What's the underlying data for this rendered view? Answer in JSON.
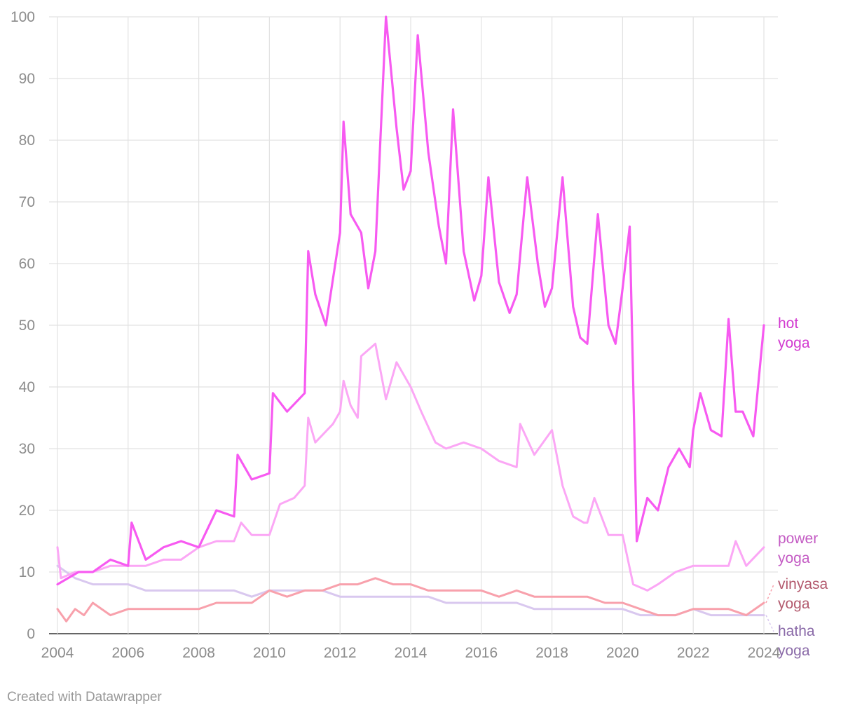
{
  "footer": {
    "credit": "Created with Datawrapper"
  },
  "chart_data": {
    "type": "line",
    "xlim": [
      2004,
      2024
    ],
    "ylim": [
      0,
      100
    ],
    "x_ticks": [
      "2004",
      "2006",
      "2008",
      "2010",
      "2012",
      "2014",
      "2016",
      "2018",
      "2020",
      "2022",
      "2024"
    ],
    "y_ticks": [
      "0",
      "10",
      "20",
      "30",
      "40",
      "50",
      "60",
      "70",
      "80",
      "90",
      "100"
    ],
    "grid": true,
    "legend": "direct labels at right end of lines",
    "series": [
      {
        "name": "hatha yoga",
        "label_lines": [
          "hatha",
          "yoga"
        ],
        "color": "#d9c8ef",
        "label_color": "#8a6aa8",
        "x": [
          2004,
          2004.5,
          2005,
          2005.5,
          2006,
          2006.5,
          2007,
          2007.5,
          2008,
          2008.5,
          2009,
          2009.5,
          2010,
          2010.5,
          2011,
          2011.5,
          2012,
          2012.5,
          2013,
          2013.5,
          2014,
          2014.5,
          2015,
          2015.5,
          2016,
          2016.5,
          2017,
          2017.5,
          2018,
          2018.5,
          2019,
          2019.5,
          2020,
          2020.5,
          2021,
          2021.5,
          2022,
          2022.5,
          2023,
          2023.5,
          2024
        ],
        "values": [
          11,
          9,
          8,
          8,
          8,
          7,
          7,
          7,
          7,
          7,
          7,
          6,
          7,
          7,
          7,
          7,
          6,
          6,
          6,
          6,
          6,
          6,
          5,
          5,
          5,
          5,
          5,
          4,
          4,
          4,
          4,
          4,
          4,
          3,
          3,
          3,
          4,
          3,
          3,
          3,
          3
        ]
      },
      {
        "name": "vinyasa yoga",
        "label_lines": [
          "vinyasa",
          "yoga"
        ],
        "color": "#f8a1ac",
        "label_color": "#b35a6e",
        "x": [
          2004,
          2004.25,
          2004.5,
          2004.75,
          2005,
          2005.5,
          2006,
          2006.5,
          2007,
          2007.5,
          2008,
          2008.5,
          2009,
          2009.5,
          2010,
          2010.5,
          2011,
          2011.5,
          2012,
          2012.5,
          2013,
          2013.5,
          2014,
          2014.5,
          2015,
          2015.5,
          2016,
          2016.5,
          2017,
          2017.5,
          2018,
          2018.5,
          2019,
          2019.5,
          2020,
          2020.5,
          2021,
          2021.5,
          2022,
          2022.5,
          2023,
          2023.5,
          2024
        ],
        "values": [
          4,
          2,
          4,
          3,
          5,
          3,
          4,
          4,
          4,
          4,
          4,
          5,
          5,
          5,
          7,
          6,
          7,
          7,
          8,
          8,
          9,
          8,
          8,
          7,
          7,
          7,
          7,
          6,
          7,
          6,
          6,
          6,
          6,
          5,
          5,
          4,
          3,
          3,
          4,
          4,
          4,
          3,
          5
        ]
      },
      {
        "name": "power yoga",
        "label_lines": [
          "power",
          "yoga"
        ],
        "color": "#fba7f5",
        "label_color": "#c45cc4",
        "x": [
          2004,
          2004.1,
          2004.5,
          2005,
          2005.5,
          2006,
          2006.5,
          2007,
          2007.5,
          2008,
          2008.5,
          2009,
          2009.2,
          2009.5,
          2010,
          2010.3,
          2010.7,
          2011,
          2011.1,
          2011.3,
          2011.8,
          2012,
          2012.1,
          2012.3,
          2012.5,
          2012.6,
          2013,
          2013.3,
          2013.6,
          2014,
          2014.3,
          2014.7,
          2015,
          2015.5,
          2016,
          2016.5,
          2017,
          2017.1,
          2017.5,
          2018,
          2018.3,
          2018.6,
          2018.9,
          2019,
          2019.2,
          2019.6,
          2020,
          2020.3,
          2020.7,
          2021,
          2021.5,
          2022,
          2022.5,
          2023,
          2023.2,
          2023.5,
          2024
        ],
        "values": [
          14,
          9,
          10,
          10,
          11,
          11,
          11,
          12,
          12,
          14,
          15,
          15,
          18,
          16,
          16,
          21,
          22,
          24,
          35,
          31,
          34,
          36,
          41,
          37,
          35,
          45,
          47,
          38,
          44,
          40,
          36,
          31,
          30,
          31,
          30,
          28,
          27,
          34,
          29,
          33,
          24,
          19,
          18,
          18,
          22,
          16,
          16,
          8,
          7,
          8,
          10,
          11,
          11,
          11,
          15,
          11,
          14
        ]
      },
      {
        "name": "hot yoga",
        "label_lines": [
          "hot",
          "yoga"
        ],
        "color": "#f75af1",
        "label_color": "#d23ad0",
        "x": [
          2004,
          2004.3,
          2004.6,
          2005,
          2005.5,
          2006,
          2006.1,
          2006.5,
          2007,
          2007.5,
          2008,
          2008.5,
          2009,
          2009.1,
          2009.5,
          2010,
          2010.1,
          2010.5,
          2011,
          2011.1,
          2011.3,
          2011.6,
          2012,
          2012.1,
          2012.3,
          2012.6,
          2012.8,
          2013,
          2013.3,
          2013.6,
          2013.8,
          2014,
          2014.2,
          2014.5,
          2014.8,
          2015,
          2015.2,
          2015.5,
          2015.8,
          2016,
          2016.2,
          2016.5,
          2016.8,
          2017,
          2017.3,
          2017.6,
          2017.8,
          2018,
          2018.3,
          2018.6,
          2018.8,
          2019,
          2019.3,
          2019.6,
          2019.8,
          2020,
          2020.2,
          2020.4,
          2020.7,
          2021,
          2021.3,
          2021.6,
          2021.9,
          2022,
          2022.2,
          2022.5,
          2022.8,
          2023,
          2023.2,
          2023.4,
          2023.7,
          2024
        ],
        "values": [
          8,
          9,
          10,
          10,
          12,
          11,
          18,
          12,
          14,
          15,
          14,
          20,
          19,
          29,
          25,
          26,
          39,
          36,
          39,
          62,
          55,
          50,
          65,
          83,
          68,
          65,
          56,
          62,
          100,
          82,
          72,
          75,
          97,
          78,
          66,
          60,
          85,
          62,
          54,
          58,
          74,
          57,
          52,
          55,
          74,
          60,
          53,
          56,
          74,
          53,
          48,
          47,
          68,
          50,
          47,
          56,
          66,
          15,
          22,
          20,
          27,
          30,
          27,
          33,
          39,
          33,
          32,
          51,
          36,
          36,
          32,
          50
        ]
      }
    ]
  }
}
